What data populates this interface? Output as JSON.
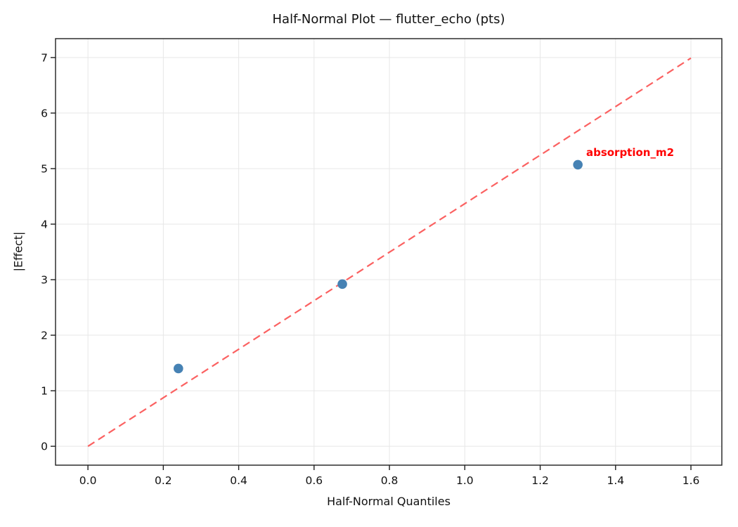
{
  "chart_data": {
    "type": "scatter",
    "title": "Half-Normal Plot — flutter_echo (pts)",
    "xlabel": "Half-Normal Quantiles",
    "ylabel": "|Effect|",
    "xlim": [
      -0.086,
      1.682
    ],
    "ylim": [
      -0.34,
      7.34
    ],
    "x_ticks": [
      0.0,
      0.2,
      0.4,
      0.6,
      0.8,
      1.0,
      1.2,
      1.4,
      1.6
    ],
    "x_tick_labels": [
      "0.0",
      "0.2",
      "0.4",
      "0.6",
      "0.8",
      "1.0",
      "1.2",
      "1.4",
      "1.6"
    ],
    "y_ticks": [
      0,
      1,
      2,
      3,
      4,
      5,
      6,
      7
    ],
    "y_tick_labels": [
      "0",
      "1",
      "2",
      "3",
      "4",
      "5",
      "6",
      "7"
    ],
    "grid": true,
    "legend": null,
    "series": [
      {
        "name": "effects",
        "points": [
          {
            "x": 0.24,
            "y": 1.4,
            "label": null
          },
          {
            "x": 0.675,
            "y": 2.92,
            "label": null
          },
          {
            "x": 1.3,
            "y": 5.07,
            "label": "absorption_m2"
          }
        ]
      }
    ],
    "reference_line": {
      "type": "dashed",
      "x1": 0.0,
      "y1": 0.0,
      "x2": 1.6,
      "y2": 6.99,
      "slope": 4.37
    },
    "annotations": [
      {
        "text": "absorption_m2",
        "x": 1.322,
        "y": 5.29
      }
    ],
    "colors": {
      "point": "#4682b4",
      "reference_line": "#fb6161",
      "annotation": "#ff0000",
      "grid": "#e7e7e7",
      "spine": "#1f1f1f",
      "tick_label": "#111111"
    }
  }
}
